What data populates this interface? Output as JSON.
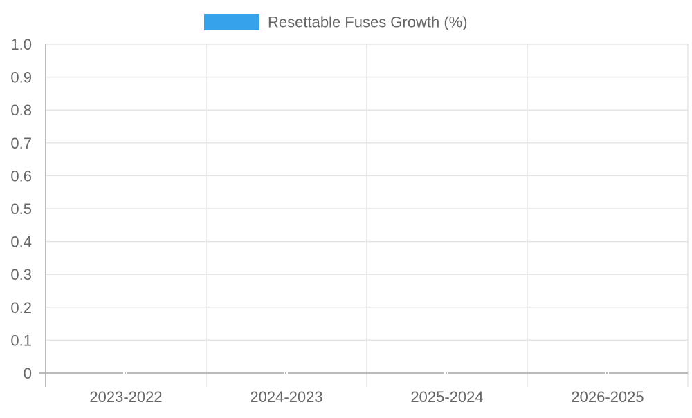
{
  "chart_data": {
    "type": "bar",
    "legend": {
      "label": "Resettable Fuses Growth (%)",
      "color": "#36a2eb",
      "position": "top-center"
    },
    "categories": [
      "2023-2022",
      "2024-2023",
      "2025-2024",
      "2026-2025"
    ],
    "series": [
      {
        "name": "Resettable Fuses Growth (%)",
        "values": [
          0,
          0,
          0,
          0
        ],
        "color": "#36a2eb"
      }
    ],
    "y_ticks": [
      "0",
      "0.1",
      "0.2",
      "0.3",
      "0.4",
      "0.5",
      "0.6",
      "0.7",
      "0.8",
      "0.9",
      "1.0"
    ],
    "ylim": [
      0,
      1
    ],
    "grid": true,
    "xlabel": "",
    "ylabel": "",
    "grid_color": "#e5e5e5",
    "axis_color": "#a6a6a6",
    "text_color": "#666666"
  }
}
